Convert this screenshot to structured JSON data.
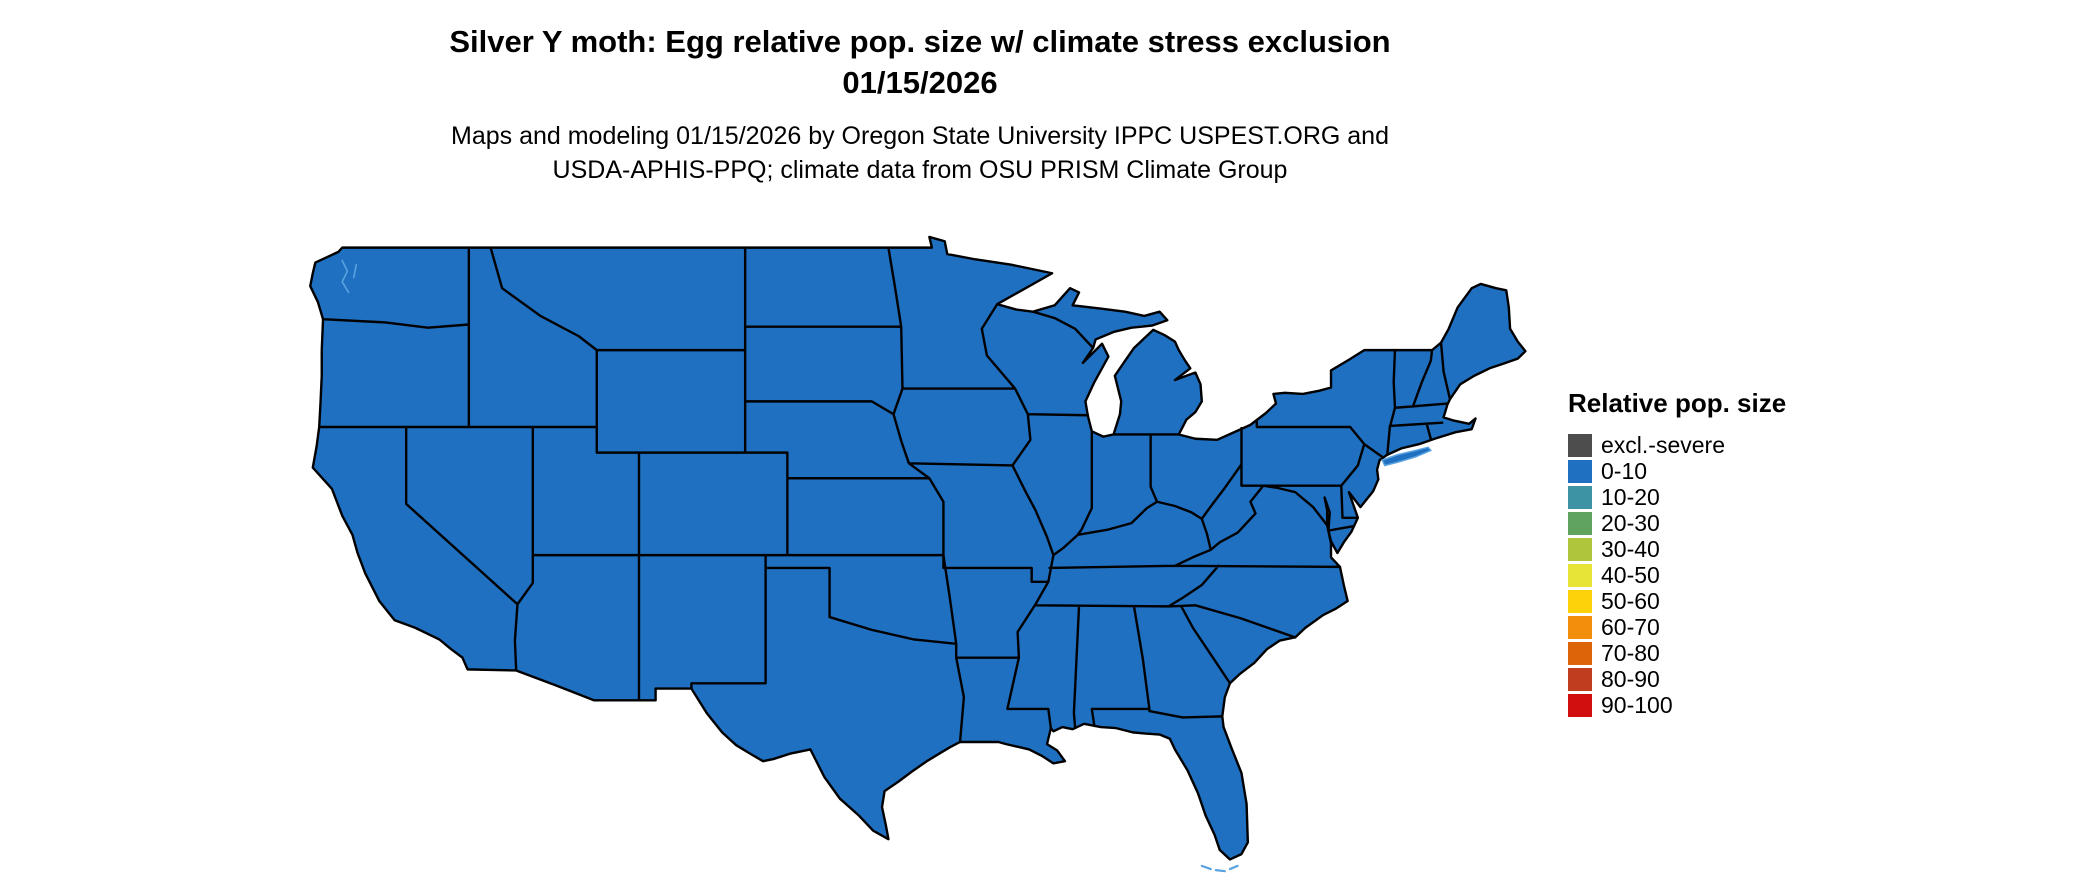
{
  "title": {
    "line1": "Silver Y moth: Egg relative pop. size w/ climate stress exclusion",
    "line2": "01/15/2026"
  },
  "subtitle": {
    "line1": "Maps and modeling 01/15/2026 by Oregon State University IPPC USPEST.ORG and",
    "line2": "USDA-APHIS-PPQ; climate data from OSU PRISM Climate Group"
  },
  "legend": {
    "title": "Relative pop. size",
    "items": [
      {
        "label": "excl.-severe",
        "color": "#4d4d4d"
      },
      {
        "label": "0-10",
        "color": "#1f70c1"
      },
      {
        "label": "10-20",
        "color": "#3d93a3"
      },
      {
        "label": "20-30",
        "color": "#5fa35f"
      },
      {
        "label": "30-40",
        "color": "#afc53c"
      },
      {
        "label": "40-50",
        "color": "#e8e337"
      },
      {
        "label": "50-60",
        "color": "#fed20a"
      },
      {
        "label": "60-70",
        "color": "#f28e0c"
      },
      {
        "label": "70-80",
        "color": "#dd6408"
      },
      {
        "label": "80-90",
        "color": "#c03d20"
      },
      {
        "label": "90-100",
        "color": "#d10f0f"
      }
    ]
  },
  "map_data": {
    "type": "choropleth",
    "region": "Contiguous United States (state level)",
    "all_states_value": "0-10",
    "fill_color": "#1f70c1",
    "border_color": "#000000",
    "coast_detail_color": "#5aa2e0"
  }
}
